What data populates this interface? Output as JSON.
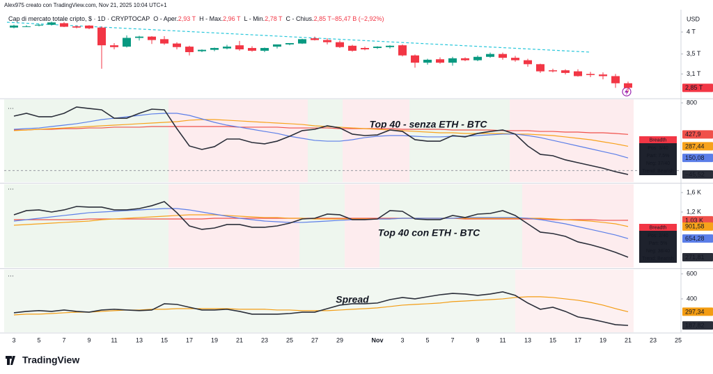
{
  "header": "Alex975 creato con TradingView.com, Nov 21, 2025 10:04 UTC+1",
  "footer_logo": "TradingView",
  "chart_data": [
    {
      "type": "candlestick",
      "title": "Cap di mercato totale cripto, $ · 1D · CRYPTOCAP",
      "ohlc_legend": [
        {
          "label": "O - Aper.",
          "value": "2,93 T"
        },
        {
          "label": "H - Max.",
          "value": "2,96 T"
        },
        {
          "label": "L - Min.",
          "value": "2,78 T"
        },
        {
          "label": "C - Chius.",
          "value": "2,85 T"
        },
        {
          "label": "",
          "value": "−85,47 B (−2,92%)"
        }
      ],
      "currency": "USD",
      "log_scale": true,
      "ylim": [
        2.69,
        4.58
      ],
      "yticks": [
        {
          "value": 4,
          "label": "4 T"
        },
        {
          "value": 3.5,
          "label": "3,5 T"
        },
        {
          "value": 3.1,
          "label": "3,1 T"
        }
      ],
      "colors": {
        "up": "#089981",
        "down": "#f23645"
      },
      "last_label": "2,85 T",
      "open": [
        4.11,
        4.14,
        4.16,
        4.18,
        4.22,
        4.14,
        4.16,
        4.11,
        3.69,
        3.66,
        3.86,
        3.89,
        3.83,
        3.73,
        3.66,
        3.56,
        3.59,
        3.62,
        3.69,
        3.63,
        3.57,
        3.66,
        3.71,
        3.73,
        3.85,
        3.81,
        3.76,
        3.68,
        3.63,
        3.63,
        3.65,
        3.69,
        3.47,
        3.32,
        3.39,
        3.32,
        3.41,
        3.37,
        3.44,
        3.5,
        3.42,
        3.37,
        3.29,
        3.17,
        3.17,
        3.15,
        3.1,
        3.09,
        3.06,
        2.93,
        null,
        null,
        null,
        null
      ],
      "high": [
        4.18,
        4.17,
        4.2,
        4.26,
        4.25,
        4.16,
        4.17,
        4.14,
        3.74,
        3.92,
        3.91,
        3.9,
        3.9,
        3.76,
        3.68,
        3.6,
        3.64,
        3.7,
        3.79,
        3.67,
        3.64,
        3.7,
        3.74,
        3.84,
        3.89,
        3.85,
        3.8,
        3.7,
        3.66,
        3.67,
        3.69,
        3.71,
        3.49,
        3.4,
        3.43,
        3.44,
        3.43,
        3.47,
        3.53,
        3.53,
        3.46,
        3.4,
        3.3,
        3.2,
        3.19,
        3.19,
        3.14,
        3.13,
        3.1,
        2.96,
        null,
        null,
        null,
        null
      ],
      "low": [
        4.09,
        4.12,
        4.14,
        4.16,
        4.12,
        4.09,
        4.07,
        3.2,
        3.6,
        3.64,
        3.8,
        3.72,
        3.7,
        3.6,
        3.47,
        3.54,
        3.56,
        3.6,
        3.57,
        3.55,
        3.54,
        3.62,
        3.69,
        3.72,
        3.8,
        3.71,
        3.63,
        3.55,
        3.58,
        3.61,
        3.62,
        3.45,
        3.22,
        3.28,
        3.3,
        3.26,
        3.35,
        3.35,
        3.42,
        3.38,
        3.34,
        3.24,
        3.12,
        3.13,
        3.09,
        3.05,
        3.04,
        3.0,
        2.85,
        2.78,
        null,
        null,
        null,
        null
      ],
      "close": [
        4.16,
        4.14,
        4.18,
        4.24,
        4.13,
        4.11,
        4.09,
        3.69,
        3.65,
        3.86,
        3.89,
        3.81,
        3.73,
        3.65,
        3.54,
        3.59,
        3.63,
        3.66,
        3.6,
        3.57,
        3.63,
        3.71,
        3.74,
        3.83,
        3.81,
        3.76,
        3.65,
        3.57,
        3.6,
        3.66,
        3.68,
        3.47,
        3.32,
        3.38,
        3.32,
        3.41,
        3.37,
        3.44,
        3.5,
        3.42,
        3.37,
        3.29,
        3.15,
        3.15,
        3.12,
        3.06,
        3.08,
        3.06,
        2.93,
        2.85,
        null,
        null,
        null,
        null
      ]
    },
    {
      "type": "line",
      "annotation": {
        "text": "Top 40 -  senza ETH - BTC",
        "color": "#1e3fae"
      },
      "ylim": [
        -136,
        841
      ],
      "yticks": [
        800
      ],
      "hlines": [
        0
      ],
      "breadth": {
        "title": "Breadth",
        "lines": [
          "Pos: 3/40",
          "Part: 7.5%",
          "Neg: 37/40",
          "Trend: Bearish"
        ]
      },
      "series": [
        {
          "color": "#f0504a",
          "last_label": "427,9",
          "values": [
            480,
            480,
            488,
            488,
            496,
            496,
            504,
            504,
            513,
            513,
            513,
            521,
            521,
            521,
            521,
            521,
            521,
            521,
            513,
            513,
            513,
            513,
            504,
            504,
            504,
            504,
            496,
            496,
            496,
            496,
            496,
            488,
            488,
            488,
            488,
            480,
            480,
            480,
            480,
            472,
            472,
            472,
            463,
            463,
            455,
            455,
            447,
            447,
            439,
            427.9,
            null,
            null,
            null,
            null
          ]
        },
        {
          "color": "#f7a21b",
          "last_label": "287,44",
          "values": [
            472,
            480,
            488,
            496,
            504,
            513,
            521,
            529,
            537,
            545,
            554,
            562,
            570,
            578,
            595,
            603,
            603,
            595,
            587,
            578,
            570,
            562,
            554,
            545,
            529,
            521,
            513,
            504,
            496,
            488,
            480,
            472,
            463,
            455,
            447,
            447,
            439,
            439,
            439,
            439,
            431,
            431,
            422,
            414,
            398,
            381,
            365,
            340,
            316,
            287.44,
            null,
            null,
            null,
            null
          ]
        },
        {
          "color": "#5b7ee8",
          "last_label": "150,08",
          "values": [
            488,
            496,
            504,
            521,
            537,
            554,
            578,
            603,
            619,
            636,
            652,
            669,
            677,
            677,
            652,
            611,
            570,
            537,
            513,
            488,
            463,
            439,
            406,
            381,
            357,
            348,
            348,
            365,
            390,
            406,
            414,
            414,
            406,
            398,
            398,
            406,
            406,
            414,
            422,
            431,
            431,
            414,
            390,
            357,
            324,
            291,
            258,
            225,
            192,
            150.08,
            null,
            null,
            null,
            null
          ]
        },
        {
          "color": "#2a2e39",
          "last_label": "−45,52",
          "values": [
            644,
            677,
            636,
            636,
            677,
            751,
            734,
            718,
            619,
            619,
            677,
            726,
            718,
            496,
            291,
            250,
            283,
            373,
            373,
            332,
            316,
            348,
            406,
            472,
            488,
            529,
            504,
            431,
            414,
            422,
            480,
            463,
            365,
            348,
            348,
            414,
            398,
            439,
            463,
            480,
            431,
            291,
            192,
            176,
            127,
            94,
            61,
            28,
            -13,
            -45.52,
            null,
            null,
            null,
            null
          ]
        }
      ]
    },
    {
      "type": "line",
      "annotation": {
        "text": "Top 40 con  ETH - BTC",
        "color": "#1e3fae"
      },
      "ylim": [
        57,
        1771
      ],
      "yticks": [
        {
          "value": 1600,
          "label": "1,6 K"
        },
        {
          "value": 1200,
          "label": "1,2 K"
        }
      ],
      "breadth": {
        "title": "Breadth",
        "lines": [
          "Pos: 2/40",
          "Part: 5%",
          "Neg: 38/40",
          "Trend: Bearish"
        ]
      },
      "series": [
        {
          "color": "#f0504a",
          "last_label": "1,03 K",
          "values": [
            1043,
            1043,
            1043,
            1043,
            1043,
            1043,
            1057,
            1057,
            1057,
            1057,
            1057,
            1057,
            1057,
            1057,
            1057,
            1057,
            1071,
            1071,
            1071,
            1071,
            1071,
            1071,
            1071,
            1071,
            1071,
            1071,
            1071,
            1071,
            1071,
            1071,
            1071,
            1071,
            1071,
            1071,
            1071,
            1071,
            1057,
            1057,
            1057,
            1057,
            1057,
            1057,
            1057,
            1043,
            1043,
            1043,
            1043,
            1029,
            1029,
            1030,
            null,
            null,
            null,
            null
          ]
        },
        {
          "color": "#f7a21b",
          "last_label": "901,58",
          "values": [
            928,
            943,
            957,
            971,
            986,
            1000,
            1014,
            1043,
            1057,
            1071,
            1086,
            1100,
            1114,
            1129,
            1143,
            1143,
            1143,
            1129,
            1114,
            1100,
            1086,
            1086,
            1071,
            1071,
            1057,
            1057,
            1057,
            1057,
            1057,
            1057,
            1057,
            1071,
            1071,
            1071,
            1071,
            1071,
            1071,
            1071,
            1071,
            1071,
            1071,
            1071,
            1071,
            1057,
            1043,
            1029,
            1014,
            986,
            957,
            901.58,
            null,
            null,
            null,
            null
          ]
        },
        {
          "color": "#5b7ee8",
          "last_label": "654,28",
          "values": [
            1014,
            1043,
            1071,
            1100,
            1129,
            1157,
            1186,
            1200,
            1214,
            1229,
            1243,
            1257,
            1271,
            1271,
            1243,
            1200,
            1157,
            1114,
            1071,
            1043,
            1014,
            1000,
            986,
            986,
            1000,
            1014,
            1029,
            1043,
            1043,
            1057,
            1057,
            1071,
            1071,
            1071,
            1071,
            1071,
            1086,
            1086,
            1086,
            1086,
            1086,
            1071,
            1043,
            1000,
            957,
            900,
            843,
            786,
            728,
            654.28,
            null,
            null,
            null,
            null
          ]
        },
        {
          "color": "#2a2e39",
          "last_label": "271,81",
          "values": [
            1143,
            1229,
            1243,
            1200,
            1243,
            1314,
            1300,
            1300,
            1243,
            1243,
            1271,
            1329,
            1414,
            1186,
            914,
            843,
            871,
            943,
            943,
            886,
            886,
            914,
            971,
            1057,
            1071,
            1157,
            1143,
            1043,
            1043,
            1057,
            1229,
            1214,
            1057,
            1043,
            1043,
            1129,
            1086,
            1157,
            1171,
            1229,
            1129,
            957,
            786,
            757,
            700,
            586,
            528,
            457,
            371,
            271.81,
            null,
            null,
            null,
            null
          ]
        }
      ]
    },
    {
      "type": "line",
      "annotation": {
        "text": "Spread",
        "color": "#1e3fae"
      },
      "ylim": [
        133,
        633
      ],
      "yticks": [
        600,
        400
      ],
      "categories": [
        "3",
        null,
        "5",
        null,
        "7",
        null,
        "9",
        null,
        "11",
        null,
        "13",
        null,
        "15",
        null,
        "17",
        null,
        "19",
        null,
        "21",
        null,
        "23",
        null,
        "25",
        null,
        "27",
        null,
        "29",
        null,
        null,
        "Nov",
        null,
        "3",
        null,
        "5",
        null,
        "7",
        null,
        "9",
        null,
        "11",
        null,
        "13",
        null,
        "15",
        null,
        "17",
        null,
        "19",
        null,
        "21",
        null,
        "23",
        null,
        "25"
      ],
      "series": [
        {
          "color": "#f39c12",
          "last_label": "297,34",
          "values": [
            272,
            278,
            278,
            283,
            289,
            294,
            294,
            300,
            306,
            311,
            311,
            317,
            317,
            322,
            322,
            322,
            322,
            322,
            317,
            317,
            317,
            311,
            311,
            306,
            306,
            306,
            311,
            317,
            322,
            328,
            339,
            350,
            356,
            361,
            367,
            378,
            383,
            389,
            394,
            400,
            411,
            417,
            417,
            411,
            400,
            389,
            372,
            350,
            322,
            297.34,
            null,
            null,
            null,
            null
          ]
        },
        {
          "color": "#2a2e39",
          "last_label": "187,82",
          "values": [
            289,
            300,
            306,
            300,
            311,
            300,
            294,
            311,
            317,
            311,
            306,
            311,
            361,
            356,
            333,
            311,
            311,
            317,
            300,
            278,
            278,
            278,
            283,
            294,
            294,
            322,
            350,
            361,
            361,
            367,
            394,
            411,
            400,
            417,
            433,
            444,
            439,
            428,
            439,
            456,
            428,
            367,
            317,
            333,
            300,
            256,
            239,
            217,
            194,
            187.82,
            null,
            null,
            null,
            null
          ]
        }
      ]
    }
  ]
}
